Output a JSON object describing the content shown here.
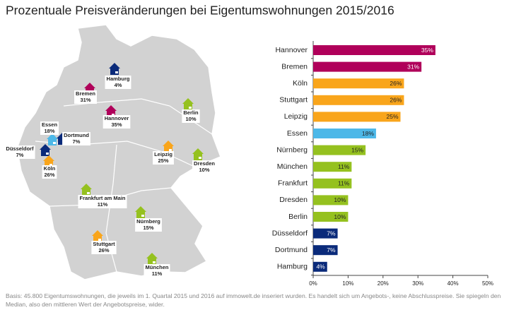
{
  "title": "Prozentuale Preisveränderungen bei Eigentumswohnungen 2015/2016",
  "map": {
    "markers": [
      {
        "name": "Hamburg",
        "label": "4%",
        "color": "#0a2a7a"
      },
      {
        "name": "Bremen",
        "label": "31%",
        "color": "#b0005a"
      },
      {
        "name": "Hannover",
        "label": "35%",
        "color": "#b0005a"
      },
      {
        "name": "Berlin",
        "label": "10%",
        "color": "#95c11f"
      },
      {
        "name": "Essen",
        "label": "18%",
        "color": "#4db8e8"
      },
      {
        "name": "Dortmund",
        "label": "7%",
        "color": "#0a2a7a"
      },
      {
        "name": "Düsseldorf",
        "label": "7%",
        "color": "#0a2a7a"
      },
      {
        "name": "Köln",
        "label": "26%",
        "color": "#f9a51b"
      },
      {
        "name": "Leipzig",
        "label": "25%",
        "color": "#f9a51b"
      },
      {
        "name": "Dresden",
        "label": "10%",
        "color": "#95c11f"
      },
      {
        "name": "Frankfurt am Main",
        "label": "11%",
        "color": "#95c11f"
      },
      {
        "name": "Nürnberg",
        "label": "15%",
        "color": "#95c11f"
      },
      {
        "name": "Stuttgart",
        "label": "26%",
        "color": "#f9a51b"
      },
      {
        "name": "München",
        "label": "11%",
        "color": "#95c11f"
      }
    ]
  },
  "chart_data": {
    "type": "hbar",
    "categories": [
      "Hannover",
      "Bremen",
      "Köln",
      "Stuttgart",
      "Leipzig",
      "Essen",
      "Nürnberg",
      "München",
      "Frankfurt",
      "Dresden",
      "Berlin",
      "Düsseldorf",
      "Dortmund",
      "Hamburg"
    ],
    "values": [
      35,
      31,
      26,
      26,
      25,
      18,
      15,
      11,
      11,
      10,
      10,
      7,
      7,
      4
    ],
    "value_labels": [
      "35%",
      "31%",
      "26%",
      "26%",
      "25%",
      "18%",
      "15%",
      "11%",
      "11%",
      "10%",
      "10%",
      "7%",
      "7%",
      "4%"
    ],
    "colors": [
      "#b0005a",
      "#b0005a",
      "#f9a51b",
      "#f9a51b",
      "#f9a51b",
      "#4db8e8",
      "#95c11f",
      "#95c11f",
      "#95c11f",
      "#95c11f",
      "#95c11f",
      "#0a2a7a",
      "#0a2a7a",
      "#0a2a7a"
    ],
    "xlim": [
      0,
      50
    ],
    "xticks": [
      {
        "value": 0,
        "label": "0%"
      },
      {
        "value": 10,
        "label": "10%"
      },
      {
        "value": 20,
        "label": "20%"
      },
      {
        "value": 30,
        "label": "30%"
      },
      {
        "value": 40,
        "label": "40%"
      },
      {
        "value": 50,
        "label": "50%"
      }
    ]
  },
  "footnote": [
    "Basis: 45.800 Eigentumswohnungen, die jeweils im 1. Quartal 2015 und 2016 auf immowelt.de inseriert wurden. Es handelt sich um Angebots-, keine Abschlusspreise. Sie spiegeln den",
    "Median, also den mittleren Wert der Angebotspreise, wider."
  ]
}
